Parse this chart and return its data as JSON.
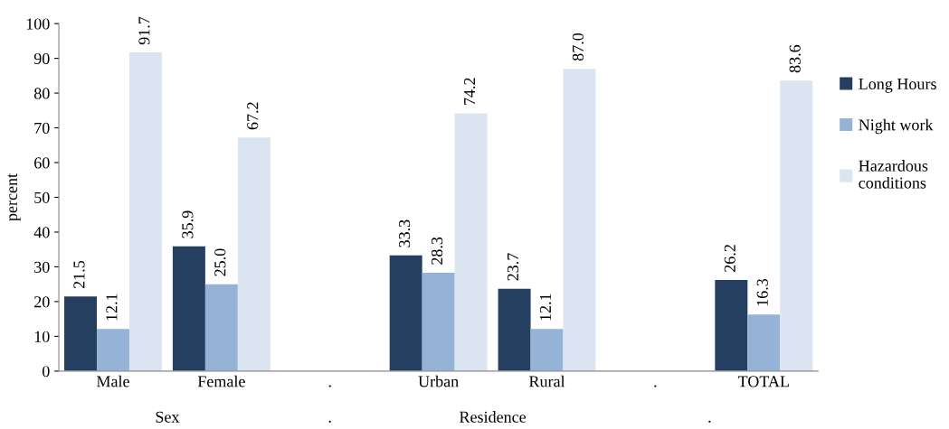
{
  "chart_data": {
    "type": "bar",
    "ylabel": "percent",
    "categories": [
      "Male",
      "Female",
      ".",
      "Urban",
      "Rural",
      ".",
      "TOTAL"
    ],
    "series": [
      {
        "name": "Long Hours",
        "color": "#243f60",
        "values": [
          21.5,
          35.9,
          null,
          33.3,
          23.7,
          null,
          26.2
        ]
      },
      {
        "name": "Night work",
        "color": "#95b3d7",
        "values": [
          12.1,
          25.0,
          null,
          28.3,
          12.1,
          null,
          16.3
        ]
      },
      {
        "name": "Hazardous conditions",
        "color": "#dbe5f1",
        "values": [
          91.7,
          67.2,
          null,
          74.2,
          87.0,
          null,
          83.6
        ]
      }
    ],
    "value_labels": [
      [
        "21.5",
        "35.9",
        null,
        "33.3",
        "23.7",
        null,
        "26.2"
      ],
      [
        "12.1",
        "25.0",
        null,
        "28.3",
        "12.1",
        null,
        "16.3"
      ],
      [
        "91.7",
        "67.2",
        null,
        "74.2",
        "87.0",
        null,
        "83.6"
      ]
    ],
    "annotations": [
      "Sex",
      ".",
      "Residence",
      "."
    ],
    "ylim": [
      0,
      100
    ],
    "yticks": [
      0,
      10,
      20,
      30,
      40,
      50,
      60,
      70,
      80,
      90,
      100
    ],
    "grid": false,
    "legend": "right"
  }
}
